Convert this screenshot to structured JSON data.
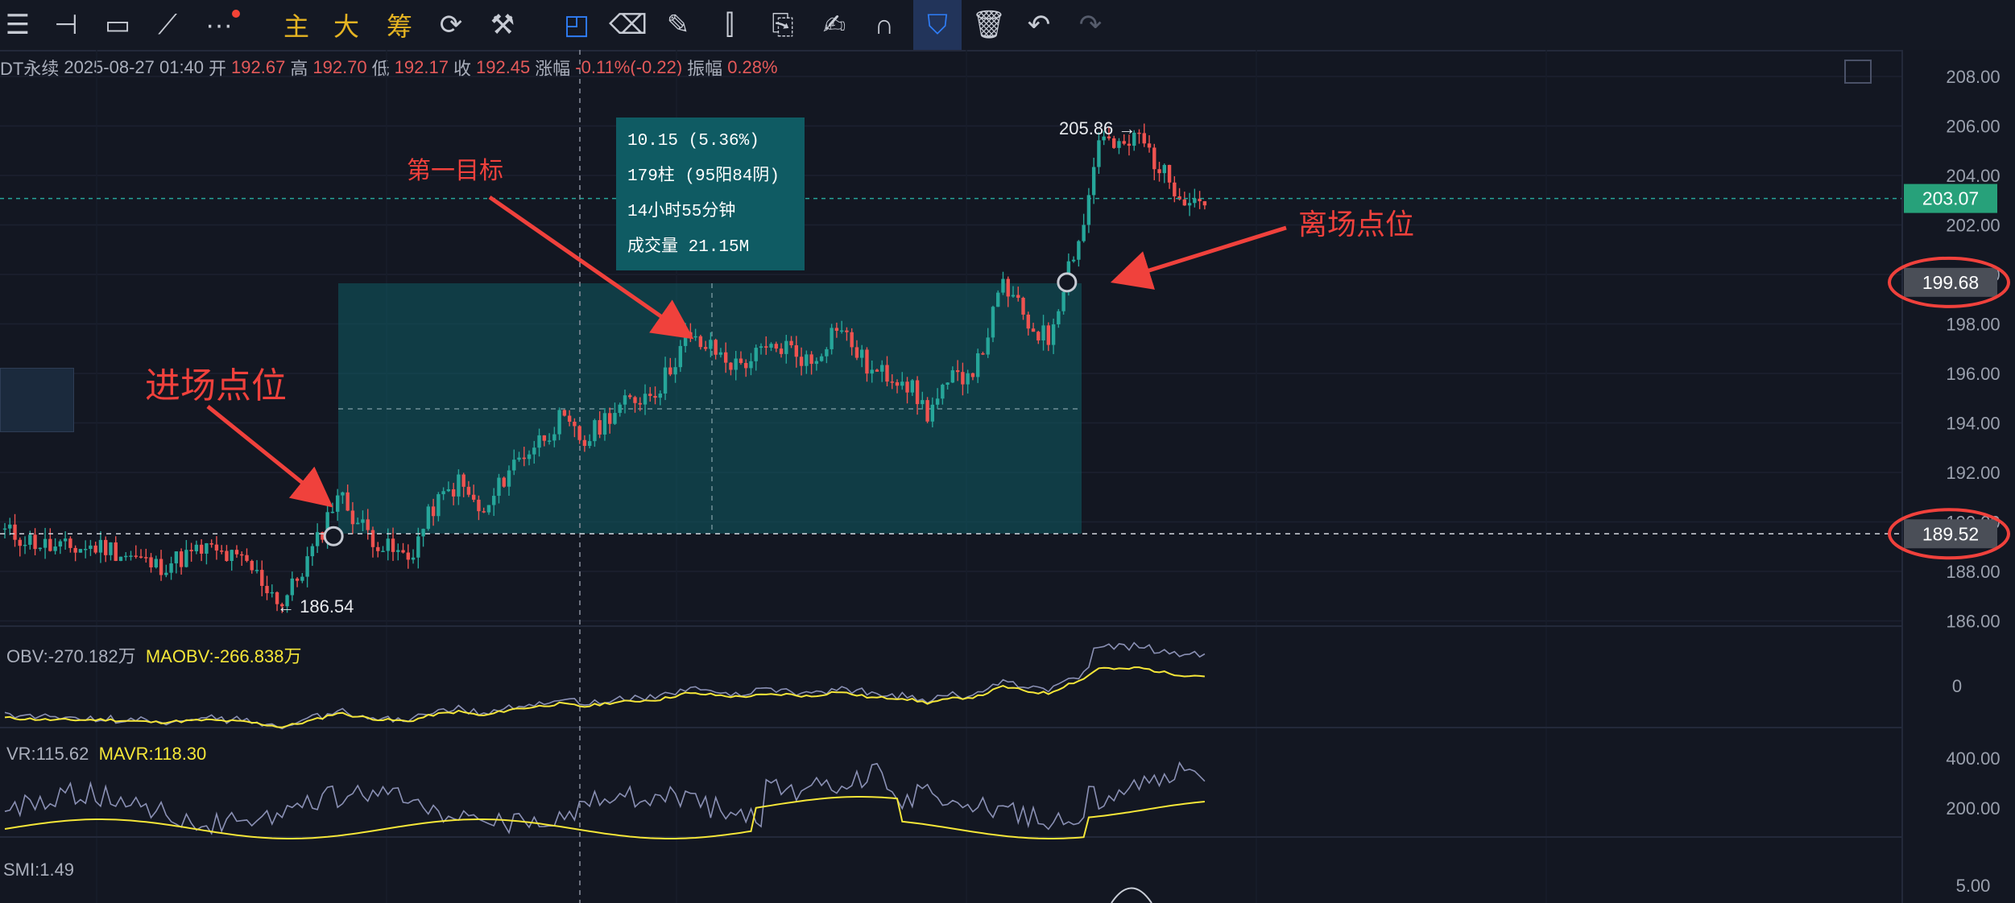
{
  "toolbar": {
    "buttons": [
      {
        "id": "menu",
        "icon": "hamburger-icon",
        "glyph": "☰"
      },
      {
        "id": "hline",
        "icon": "horizontal-line-icon",
        "glyph": "⊣"
      },
      {
        "id": "rect",
        "icon": "rectangle-icon",
        "glyph": "▭"
      },
      {
        "id": "trend",
        "icon": "trendline-icon",
        "glyph": "⟋"
      },
      {
        "id": "more",
        "icon": "more-icon",
        "glyph": "···"
      },
      {
        "id": "zhu",
        "label": "主"
      },
      {
        "id": "da",
        "label": "大"
      },
      {
        "id": "chou",
        "label": "筹"
      },
      {
        "id": "sync",
        "icon": "sync-icon",
        "glyph": "⟳"
      },
      {
        "id": "measure",
        "icon": "measure-icon",
        "glyph": "⚒"
      },
      {
        "id": "select",
        "icon": "select-icon",
        "glyph": "◰"
      },
      {
        "id": "eraser",
        "icon": "eraser-icon",
        "glyph": "⌫"
      },
      {
        "id": "pen",
        "icon": "pen-icon",
        "glyph": "✎"
      },
      {
        "id": "candles",
        "icon": "candles-icon",
        "glyph": "⫿"
      },
      {
        "id": "clip",
        "icon": "clipboard-icon",
        "glyph": "⎘"
      },
      {
        "id": "note",
        "icon": "note-icon",
        "glyph": "✍"
      },
      {
        "id": "magnet",
        "icon": "magnet-icon",
        "glyph": "∩"
      },
      {
        "id": "filter",
        "icon": "filter-icon",
        "glyph": "⛉"
      },
      {
        "id": "trash",
        "icon": "trash-icon",
        "glyph": "🗑"
      },
      {
        "id": "undo",
        "icon": "undo-icon",
        "glyph": "↶"
      },
      {
        "id": "redo",
        "icon": "redo-icon",
        "glyph": "↷"
      }
    ]
  },
  "info": {
    "symbol": "DT永续",
    "datetime": "2025-08-27 01:40",
    "open_label": "开",
    "open": "192.67",
    "high_label": "高",
    "high": "192.70",
    "low_label": "低",
    "low": "192.17",
    "close_label": "收",
    "close": "192.45",
    "change_label": "涨幅",
    "change": "-0.11%(-0.22)",
    "amp_label": "振幅",
    "amp": "0.28%"
  },
  "measure_box": {
    "line1": "10.15 (5.36%)",
    "line2": "179柱 (95阳84阴)",
    "line3": "14小时55分钟",
    "line4": "成交量 21.15M"
  },
  "annotations": {
    "entry": "进场点位",
    "target": "第一目标",
    "exit": "离场点位"
  },
  "price_axis": {
    "ticks": [
      "208.00",
      "206.00",
      "204.00",
      "202.00",
      "200.00",
      "198.00",
      "196.00",
      "194.00",
      "192.00",
      "190.00",
      "188.00",
      "186.00"
    ],
    "current_price": "203.07",
    "exit_price": "199.68",
    "entry_price": "189.52",
    "high_label": "205.86",
    "low_label": "186.54"
  },
  "indicators": {
    "obv_label": "OBV:-270.182万",
    "maobv_label": "MAOBV:-266.838万",
    "obv_tick": "0",
    "vr_label": "VR:115.62",
    "mavr_label": "MAVR:118.30",
    "vr_ticks": [
      "400.00",
      "200.00"
    ],
    "smi_label": "SMI:1.49",
    "smi_tick": "5.00"
  },
  "colors": {
    "background": "#131722",
    "up": "#26a69a",
    "down": "#ef5350",
    "annotation": "#f0413c",
    "measure_fill": "#0f5b63",
    "current_price_bg": "#27a17a",
    "ma_line": "#f5e638",
    "obv_line": "#8a90b4"
  },
  "chart_data": {
    "type": "candlestick",
    "y_range": [
      185,
      209
    ],
    "knots": [
      [
        0,
        189.6
      ],
      [
        10,
        188.9
      ],
      [
        20,
        189.0
      ],
      [
        30,
        188.2
      ],
      [
        40,
        188.9
      ],
      [
        48,
        188.3
      ],
      [
        55,
        186.7
      ],
      [
        58,
        187.7
      ],
      [
        62,
        189.2
      ],
      [
        66,
        191.2
      ],
      [
        70,
        190.0
      ],
      [
        75,
        189.0
      ],
      [
        80,
        188.5
      ],
      [
        85,
        190.6
      ],
      [
        90,
        191.6
      ],
      [
        95,
        190.2
      ],
      [
        100,
        192.2
      ],
      [
        105,
        193.1
      ],
      [
        110,
        194.1
      ],
      [
        115,
        193.2
      ],
      [
        120,
        194.4
      ],
      [
        130,
        195.5
      ],
      [
        135,
        197.4
      ],
      [
        140,
        197.0
      ],
      [
        145,
        196.3
      ],
      [
        150,
        196.8
      ],
      [
        155,
        197.1
      ],
      [
        160,
        196.4
      ],
      [
        165,
        198.0
      ],
      [
        172,
        196.0
      ],
      [
        178,
        195.9
      ],
      [
        183,
        194.4
      ],
      [
        188,
        195.7
      ],
      [
        193,
        196.4
      ],
      [
        198,
        199.6
      ],
      [
        203,
        198.0
      ],
      [
        207,
        197.4
      ],
      [
        211,
        200.4
      ],
      [
        214,
        202.0
      ],
      [
        217,
        205.6
      ],
      [
        221,
        205.0
      ],
      [
        225,
        205.6
      ],
      [
        230,
        204.0
      ],
      [
        234,
        203.2
      ],
      [
        238,
        203.0
      ]
    ],
    "count": 239,
    "entry_index": 66,
    "exit_index": 211,
    "entry_price": 189.52,
    "exit_price": 199.68,
    "current_price": 203.07,
    "max_price": 205.86,
    "min_price": 186.54
  }
}
